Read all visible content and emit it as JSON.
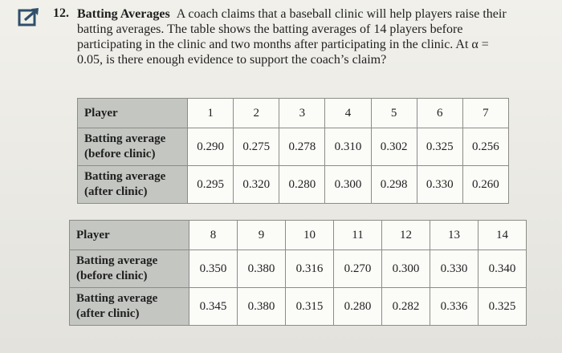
{
  "problem": {
    "number": "12.",
    "title": "Batting Averages",
    "text": "A coach claims that a baseball clinic will help players raise their batting averages. The table shows the batting averages of 14 players before participating in the clinic and two months after participating in the clinic. At α = 0.05, is there enough evidence to support the coach’s claim?"
  },
  "colors": {
    "header_fill": "#c4c6c2",
    "icon_accent": "#2f4f6b"
  },
  "icons": [
    "external-link-icon"
  ],
  "table_1": {
    "row_labels": {
      "player": "Player",
      "before_line1": "Batting average",
      "before_line2": "(before clinic)",
      "after_line1": "Batting average",
      "after_line2": "(after clinic)"
    },
    "players": [
      "1",
      "2",
      "3",
      "4",
      "5",
      "6",
      "7"
    ],
    "before": [
      "0.290",
      "0.275",
      "0.278",
      "0.310",
      "0.302",
      "0.325",
      "0.256"
    ],
    "after": [
      "0.295",
      "0.320",
      "0.280",
      "0.300",
      "0.298",
      "0.330",
      "0.260"
    ]
  },
  "table_2": {
    "row_labels": {
      "player": "Player",
      "before_line1": "Batting average",
      "before_line2": "(before clinic)",
      "after_line1": "Batting average",
      "after_line2": "(after clinic)"
    },
    "players": [
      "8",
      "9",
      "10",
      "11",
      "12",
      "13",
      "14"
    ],
    "before": [
      "0.350",
      "0.380",
      "0.316",
      "0.270",
      "0.300",
      "0.330",
      "0.340"
    ],
    "after": [
      "0.345",
      "0.380",
      "0.315",
      "0.280",
      "0.282",
      "0.336",
      "0.325"
    ]
  }
}
